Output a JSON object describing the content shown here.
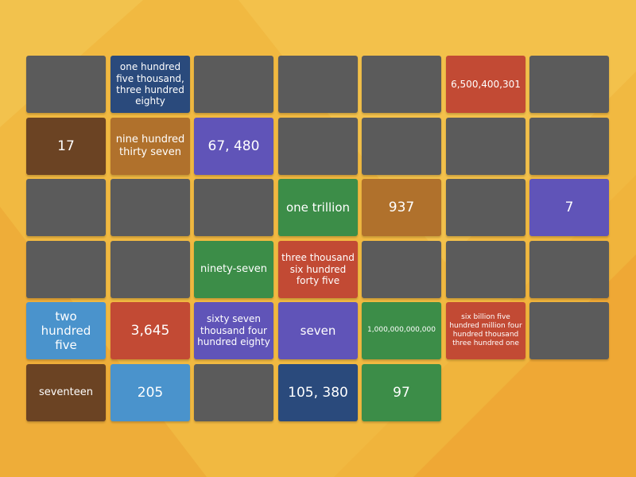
{
  "colors": {
    "background": "#f0b43c",
    "hidden": "#5b5b5b",
    "navy": "#2a4a7c",
    "red": "#c24a34",
    "brown": "#6b4323",
    "tan": "#b0712c",
    "purple": "#6054b8",
    "green": "#3c8d48",
    "light_blue": "#4a93cc"
  },
  "board": {
    "columns": 7,
    "tiles": [
      {
        "text": "",
        "color": "hidden"
      },
      {
        "text": "one hundred five thousand, three hundred eighty",
        "color": "navy",
        "size": "fs-s"
      },
      {
        "text": "",
        "color": "hidden"
      },
      {
        "text": "",
        "color": "hidden"
      },
      {
        "text": "",
        "color": "hidden"
      },
      {
        "text": "6,500,400,301",
        "color": "red",
        "size": "fs-s"
      },
      {
        "text": "",
        "color": "hidden"
      },
      {
        "text": "17",
        "color": "brown",
        "size": "fs-xl"
      },
      {
        "text": "nine hundred thirty seven",
        "color": "tan",
        "size": "fs-m"
      },
      {
        "text": "67, 480",
        "color": "purple",
        "size": "fs-xl"
      },
      {
        "text": "",
        "color": "hidden"
      },
      {
        "text": "",
        "color": "hidden"
      },
      {
        "text": "",
        "color": "hidden"
      },
      {
        "text": "",
        "color": "hidden"
      },
      {
        "text": "",
        "color": "hidden"
      },
      {
        "text": "",
        "color": "hidden"
      },
      {
        "text": "",
        "color": "hidden"
      },
      {
        "text": "one trillion",
        "color": "green",
        "size": "fs-l"
      },
      {
        "text": "937",
        "color": "tan",
        "size": "fs-xl"
      },
      {
        "text": "",
        "color": "hidden"
      },
      {
        "text": "7",
        "color": "purple",
        "size": "fs-xl"
      },
      {
        "text": "",
        "color": "hidden"
      },
      {
        "text": "",
        "color": "hidden"
      },
      {
        "text": "ninety-seven",
        "color": "green",
        "size": "fs-m"
      },
      {
        "text": "three thousand six hundred forty five",
        "color": "red",
        "size": "fs-s"
      },
      {
        "text": "",
        "color": "hidden"
      },
      {
        "text": "",
        "color": "hidden"
      },
      {
        "text": "",
        "color": "hidden"
      },
      {
        "text": "two hundred five",
        "color": "light_blue",
        "size": "fs-l"
      },
      {
        "text": "3,645",
        "color": "red",
        "size": "fs-xl"
      },
      {
        "text": "sixty seven thousand four hundred eighty",
        "color": "purple",
        "size": "fs-s"
      },
      {
        "text": "seven",
        "color": "purple",
        "size": "fs-l"
      },
      {
        "text": "1,000,000,000,000",
        "color": "green",
        "size": "fs-xs"
      },
      {
        "text": "six billion five hundred million four hundred thousand three hundred one",
        "color": "red",
        "size": "fs-xs"
      },
      {
        "text": "",
        "color": "hidden"
      },
      {
        "text": "seventeen",
        "color": "brown",
        "size": "fs-m"
      },
      {
        "text": "205",
        "color": "light_blue",
        "size": "fs-xl"
      },
      {
        "text": "",
        "color": "hidden"
      },
      {
        "text": "105, 380",
        "color": "navy",
        "size": "fs-xl"
      },
      {
        "text": "97",
        "color": "green",
        "size": "fs-xl"
      }
    ]
  }
}
